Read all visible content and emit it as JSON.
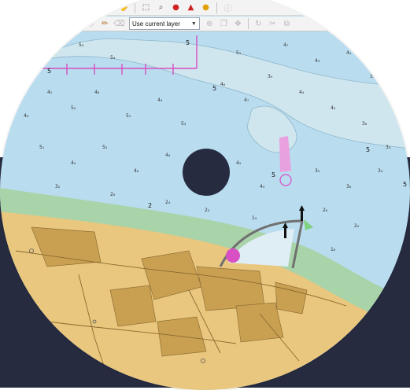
{
  "layer_selector": {
    "value": "Use current layer"
  },
  "toolbar": {
    "row1_icons": [
      "undo-icon",
      "redo-icon",
      "pan-hand-icon",
      "selection-icon",
      "query-icon",
      "warning-red-icon",
      "warning-triangle-icon",
      "warning-yellow-icon",
      "info-icon"
    ],
    "row2_icons": [
      "edit-icon",
      "node-icon",
      "pencil-icon",
      "eraser-icon",
      "snap-icon",
      "copy-icon",
      "move-icon",
      "rotate-icon",
      "split-icon",
      "merge-icon"
    ]
  },
  "map": {
    "depth_labels": [
      "5",
      "5",
      "5",
      "5",
      "5",
      "5",
      "2",
      "5"
    ],
    "colors": {
      "deep_water": "#b9dcef",
      "shallow_water": "#cfe6ee",
      "intertidal": "#a9d3a9",
      "land": "#e9c77f",
      "buildings": "#c9a052",
      "magenta_symbols": "#d64fc4",
      "background": "#272b40"
    }
  }
}
